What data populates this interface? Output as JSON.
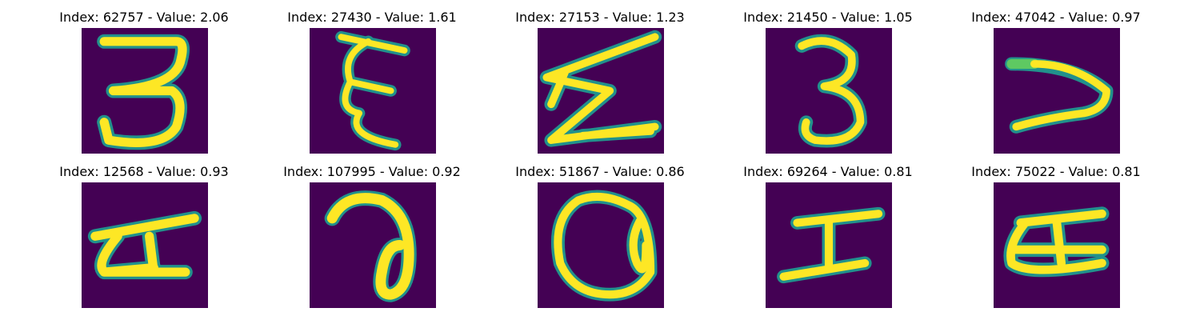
{
  "colors": {
    "background": "#440154",
    "stroke_core": "#fde725",
    "stroke_edge": "#21918c",
    "stroke_mid": "#5ec962"
  },
  "panels": [
    {
      "title": "Index: 62757 - Value: 2.06",
      "index": 62757,
      "value": 2.06,
      "glyph": "three-open"
    },
    {
      "title": "Index: 27430 - Value: 1.61",
      "index": 27430,
      "value": 1.61,
      "glyph": "stacked-squiggle"
    },
    {
      "title": "Index: 27153 - Value: 1.23",
      "index": 27153,
      "value": 1.23,
      "glyph": "zigzag"
    },
    {
      "title": "Index: 21450 - Value: 1.05",
      "index": 21450,
      "value": 1.05,
      "glyph": "three"
    },
    {
      "title": "Index: 47042 - Value: 0.97",
      "index": 47042,
      "value": 0.97,
      "glyph": "angle"
    },
    {
      "title": "Index: 12568 - Value: 0.93",
      "index": 12568,
      "value": 0.93,
      "glyph": "loop-bar"
    },
    {
      "title": "Index: 107995 - Value: 0.92",
      "index": 107995,
      "value": 0.92,
      "glyph": "hook-loop"
    },
    {
      "title": "Index: 51867 - Value: 0.86",
      "index": 51867,
      "value": 0.86,
      "glyph": "oval"
    },
    {
      "title": "Index: 69264 - Value: 0.81",
      "index": 69264,
      "value": 0.81,
      "glyph": "i-beam"
    },
    {
      "title": "Index: 75022 - Value: 0.81",
      "index": 75022,
      "value": 0.81,
      "glyph": "loop-bar-2"
    }
  ]
}
